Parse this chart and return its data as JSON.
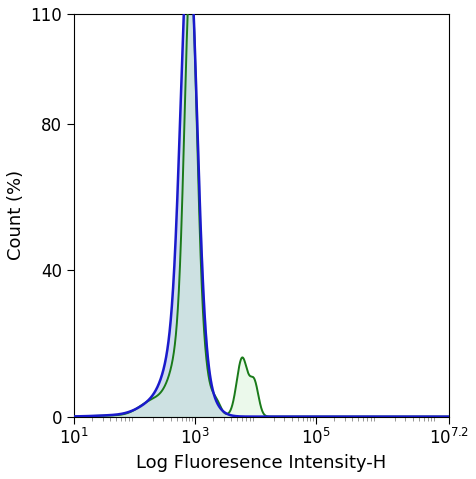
{
  "title": "",
  "xlabel": "Log Fluoresence Intensity-H",
  "ylabel": "Count (%)",
  "xlim_log": [
    1,
    7.2
  ],
  "ylim": [
    0,
    110
  ],
  "yticks": [
    0,
    40,
    80
  ],
  "ytick_extra": 110,
  "xtick_labels": [
    "$10^1$",
    "$10^3$",
    "$10^5$",
    "$10^{7.2}$"
  ],
  "xtick_positions": [
    1,
    3,
    5,
    7.2
  ],
  "blue_color": "#1a1acc",
  "green_color": "#1a7a1a",
  "fill_color": "#b8c8e8",
  "fill_alpha": 0.65,
  "background_color": "#ffffff"
}
